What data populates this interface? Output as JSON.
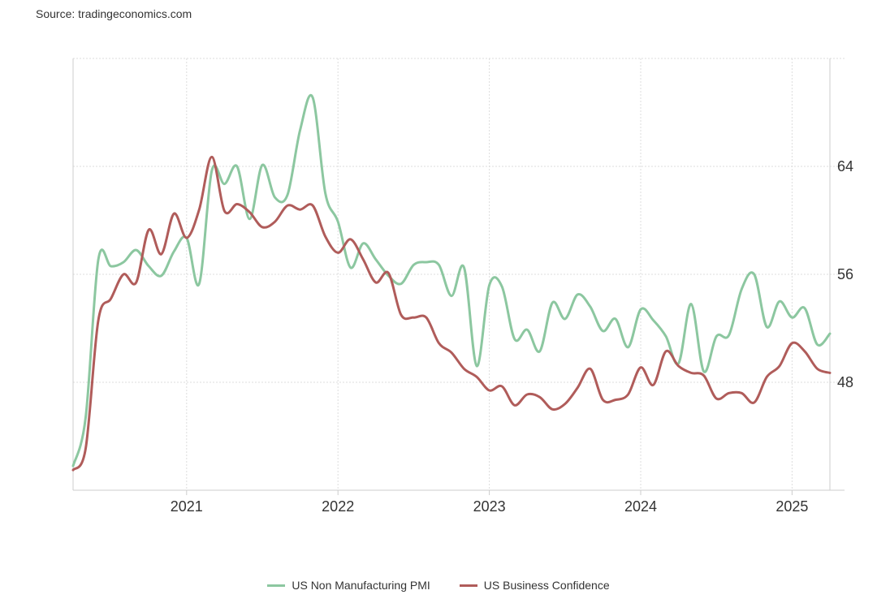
{
  "source": "Source: tradingeconomics.com",
  "colors": {
    "pmi": "#8cc7a0",
    "confidence": "#b05c5a",
    "grid": "#dddddd",
    "axis": "#cccccc"
  },
  "chart_data": {
    "type": "line",
    "title": "",
    "xlabel": "",
    "ylabel": "",
    "x_ticks": [
      "2021",
      "2022",
      "2023",
      "2024",
      "2025"
    ],
    "y_ticks": [
      48,
      56,
      64
    ],
    "ylim": [
      40,
      72
    ],
    "xlim": [
      "2020-04",
      "2025-04"
    ],
    "grid": true,
    "legend_position": "bottom",
    "series": [
      {
        "name": "US Non Manufacturing PMI",
        "color": "#8cc7a0",
        "points": [
          [
            "2020-04",
            41.8
          ],
          [
            "2020-05",
            45.4
          ],
          [
            "2020-06",
            57.1
          ],
          [
            "2020-07",
            56.6
          ],
          [
            "2020-08",
            56.9
          ],
          [
            "2020-09",
            57.8
          ],
          [
            "2020-10",
            56.6
          ],
          [
            "2020-11",
            55.9
          ],
          [
            "2020-12",
            57.7
          ],
          [
            "2021-01",
            58.7
          ],
          [
            "2021-02",
            55.3
          ],
          [
            "2021-03",
            63.7
          ],
          [
            "2021-04",
            62.7
          ],
          [
            "2021-05",
            64.0
          ],
          [
            "2021-06",
            60.1
          ],
          [
            "2021-07",
            64.1
          ],
          [
            "2021-08",
            61.7
          ],
          [
            "2021-09",
            61.9
          ],
          [
            "2021-10",
            66.7
          ],
          [
            "2021-11",
            69.1
          ],
          [
            "2021-12",
            62.0
          ],
          [
            "2022-01",
            59.9
          ],
          [
            "2022-02",
            56.5
          ],
          [
            "2022-03",
            58.3
          ],
          [
            "2022-04",
            57.1
          ],
          [
            "2022-05",
            55.9
          ],
          [
            "2022-06",
            55.3
          ],
          [
            "2022-07",
            56.7
          ],
          [
            "2022-08",
            56.9
          ],
          [
            "2022-09",
            56.7
          ],
          [
            "2022-10",
            54.4
          ],
          [
            "2022-11",
            56.5
          ],
          [
            "2022-12",
            49.2
          ],
          [
            "2023-01",
            55.2
          ],
          [
            "2023-02",
            55.1
          ],
          [
            "2023-03",
            51.2
          ],
          [
            "2023-04",
            51.9
          ],
          [
            "2023-05",
            50.3
          ],
          [
            "2023-06",
            53.9
          ],
          [
            "2023-07",
            52.7
          ],
          [
            "2023-08",
            54.5
          ],
          [
            "2023-09",
            53.6
          ],
          [
            "2023-10",
            51.8
          ],
          [
            "2023-11",
            52.7
          ],
          [
            "2023-12",
            50.6
          ],
          [
            "2024-01",
            53.4
          ],
          [
            "2024-02",
            52.6
          ],
          [
            "2024-03",
            51.4
          ],
          [
            "2024-04",
            49.4
          ],
          [
            "2024-05",
            53.8
          ],
          [
            "2024-06",
            48.8
          ],
          [
            "2024-07",
            51.4
          ],
          [
            "2024-08",
            51.5
          ],
          [
            "2024-09",
            54.9
          ],
          [
            "2024-10",
            56.0
          ],
          [
            "2024-11",
            52.1
          ],
          [
            "2024-12",
            54.0
          ],
          [
            "2025-01",
            52.8
          ],
          [
            "2025-02",
            53.5
          ],
          [
            "2025-03",
            50.8
          ],
          [
            "2025-04",
            51.6
          ]
        ]
      },
      {
        "name": "US Business Confidence",
        "color": "#b05c5a",
        "points": [
          [
            "2020-04",
            41.5
          ],
          [
            "2020-05",
            43.1
          ],
          [
            "2020-06",
            52.6
          ],
          [
            "2020-07",
            54.2
          ],
          [
            "2020-08",
            56.0
          ],
          [
            "2020-09",
            55.4
          ],
          [
            "2020-10",
            59.3
          ],
          [
            "2020-11",
            57.5
          ],
          [
            "2020-12",
            60.5
          ],
          [
            "2021-01",
            58.7
          ],
          [
            "2021-02",
            60.8
          ],
          [
            "2021-03",
            64.7
          ],
          [
            "2021-04",
            60.7
          ],
          [
            "2021-05",
            61.2
          ],
          [
            "2021-06",
            60.6
          ],
          [
            "2021-07",
            59.5
          ],
          [
            "2021-08",
            59.9
          ],
          [
            "2021-09",
            61.1
          ],
          [
            "2021-10",
            60.8
          ],
          [
            "2021-11",
            61.1
          ],
          [
            "2021-12",
            58.8
          ],
          [
            "2022-01",
            57.6
          ],
          [
            "2022-02",
            58.6
          ],
          [
            "2022-03",
            57.1
          ],
          [
            "2022-04",
            55.4
          ],
          [
            "2022-05",
            56.1
          ],
          [
            "2022-06",
            53.0
          ],
          [
            "2022-07",
            52.8
          ],
          [
            "2022-08",
            52.8
          ],
          [
            "2022-09",
            50.9
          ],
          [
            "2022-10",
            50.2
          ],
          [
            "2022-11",
            49.0
          ],
          [
            "2022-12",
            48.4
          ],
          [
            "2023-01",
            47.4
          ],
          [
            "2023-02",
            47.7
          ],
          [
            "2023-03",
            46.3
          ],
          [
            "2023-04",
            47.1
          ],
          [
            "2023-05",
            46.9
          ],
          [
            "2023-06",
            46.0
          ],
          [
            "2023-07",
            46.4
          ],
          [
            "2023-08",
            47.6
          ],
          [
            "2023-09",
            49.0
          ],
          [
            "2023-10",
            46.7
          ],
          [
            "2023-11",
            46.7
          ],
          [
            "2023-12",
            47.1
          ],
          [
            "2024-01",
            49.1
          ],
          [
            "2024-02",
            47.8
          ],
          [
            "2024-03",
            50.3
          ],
          [
            "2024-04",
            49.2
          ],
          [
            "2024-05",
            48.7
          ],
          [
            "2024-06",
            48.5
          ],
          [
            "2024-07",
            46.8
          ],
          [
            "2024-08",
            47.2
          ],
          [
            "2024-09",
            47.2
          ],
          [
            "2024-10",
            46.5
          ],
          [
            "2024-11",
            48.4
          ],
          [
            "2024-12",
            49.2
          ],
          [
            "2025-01",
            50.9
          ],
          [
            "2025-02",
            50.3
          ],
          [
            "2025-03",
            49.0
          ],
          [
            "2025-04",
            48.7
          ]
        ]
      }
    ]
  }
}
